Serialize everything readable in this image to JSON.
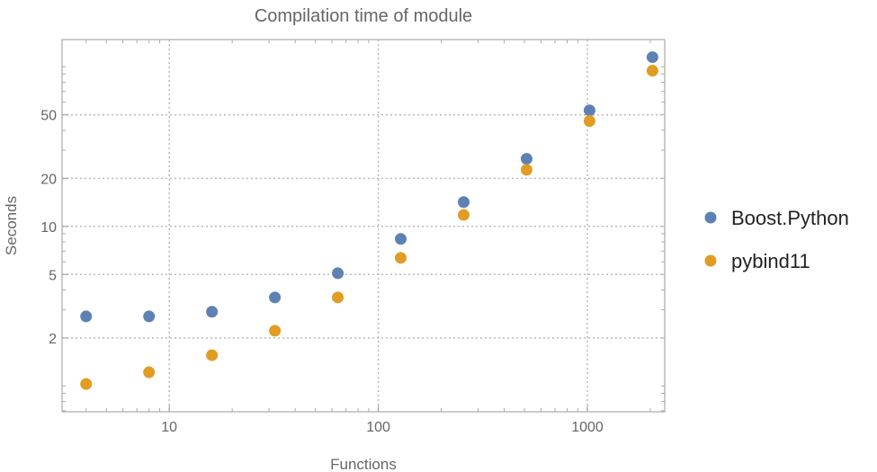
{
  "chart_data": {
    "type": "scatter",
    "title": "Compilation time of module",
    "xlabel": "Functions",
    "ylabel": "Seconds",
    "xscale": "log",
    "yscale": "log",
    "xlim": [
      3.07,
      2344
    ],
    "ylim": [
      0.69,
      148
    ],
    "grid": true,
    "legend_position": "right",
    "x_ticks": [
      10,
      100,
      1000
    ],
    "x_tick_labels": [
      "10",
      "100",
      "1000"
    ],
    "y_ticks": [
      2,
      5,
      10,
      20,
      50
    ],
    "y_tick_labels": [
      "2",
      "5",
      "10",
      "20",
      "50"
    ],
    "x": [
      4,
      8,
      16,
      32,
      64,
      128,
      256,
      512,
      1024,
      2048
    ],
    "series": [
      {
        "name": "Boost.Python",
        "color": "#5E81B5",
        "values": [
          2.73,
          2.73,
          2.92,
          3.59,
          5.09,
          8.34,
          14.2,
          26.5,
          53.3,
          114.8
        ]
      },
      {
        "name": "pybind11",
        "color": "#E19C24",
        "values": [
          1.03,
          1.22,
          1.56,
          2.22,
          3.59,
          6.35,
          11.8,
          22.6,
          45.7,
          94.4
        ]
      }
    ]
  }
}
